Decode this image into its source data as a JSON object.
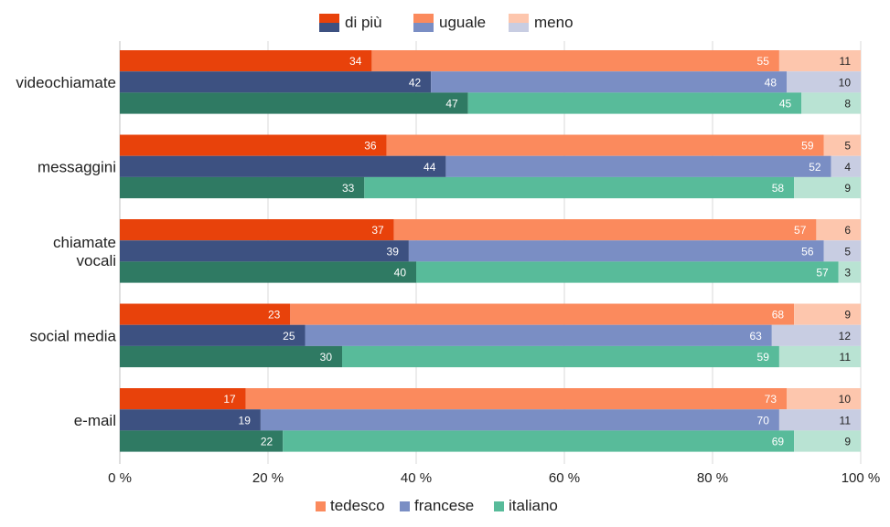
{
  "chart_data": {
    "type": "bar",
    "orientation": "horizontal",
    "stacked": true,
    "normalized_to_100": true,
    "legend_stack": [
      {
        "name": "di più",
        "colors": [
          "#e8420b",
          "#3d5181",
          "#2f7a63"
        ]
      },
      {
        "name": "uguale",
        "colors": [
          "#fb8a5d",
          "#7a8ec4",
          "#58bb9a"
        ]
      },
      {
        "name": "meno",
        "colors": [
          "#fdc6ad",
          "#c8cde2",
          "#b9e3d3"
        ]
      }
    ],
    "legend_languages": [
      {
        "name": "tedesco",
        "color": "#fb8a5d"
      },
      {
        "name": "francese",
        "color": "#7a8ec4"
      },
      {
        "name": "italiano",
        "color": "#58bb9a"
      }
    ],
    "xlim": [
      0,
      100
    ],
    "x_ticks": [
      "0 %",
      "20 %",
      "40 %",
      "60 %",
      "80 %",
      "100 %"
    ],
    "x_tick_values": [
      0,
      20,
      40,
      60,
      80,
      100
    ],
    "grid": true,
    "categories": [
      {
        "label_lines": [
          "videochiamate"
        ],
        "bars": [
          [
            34,
            55,
            11
          ],
          [
            42,
            48,
            10
          ],
          [
            47,
            45,
            8
          ]
        ]
      },
      {
        "label_lines": [
          "messaggini"
        ],
        "bars": [
          [
            36,
            59,
            5
          ],
          [
            44,
            52,
            4
          ],
          [
            33,
            58,
            9
          ]
        ]
      },
      {
        "label_lines": [
          "chiamate",
          "vocali"
        ],
        "bars": [
          [
            37,
            57,
            6
          ],
          [
            39,
            56,
            5
          ],
          [
            40,
            57,
            3
          ]
        ]
      },
      {
        "label_lines": [
          "social media"
        ],
        "bars": [
          [
            23,
            68,
            9
          ],
          [
            25,
            63,
            12
          ],
          [
            30,
            59,
            11
          ]
        ]
      },
      {
        "label_lines": [
          "e-mail"
        ],
        "bars": [
          [
            17,
            73,
            10
          ],
          [
            19,
            70,
            11
          ],
          [
            22,
            69,
            9
          ]
        ]
      }
    ],
    "bar_colors": [
      [
        "#e8420b",
        "#fb8a5d",
        "#fdc6ad"
      ],
      [
        "#3d5181",
        "#7a8ec4",
        "#c8cde2"
      ],
      [
        "#2f7a63",
        "#58bb9a",
        "#b9e3d3"
      ]
    ],
    "label_colors": [
      [
        "#ffffff",
        "#ffffff",
        "#222222"
      ],
      [
        "#ffffff",
        "#ffffff",
        "#222222"
      ],
      [
        "#ffffff",
        "#ffffff",
        "#222222"
      ]
    ]
  }
}
